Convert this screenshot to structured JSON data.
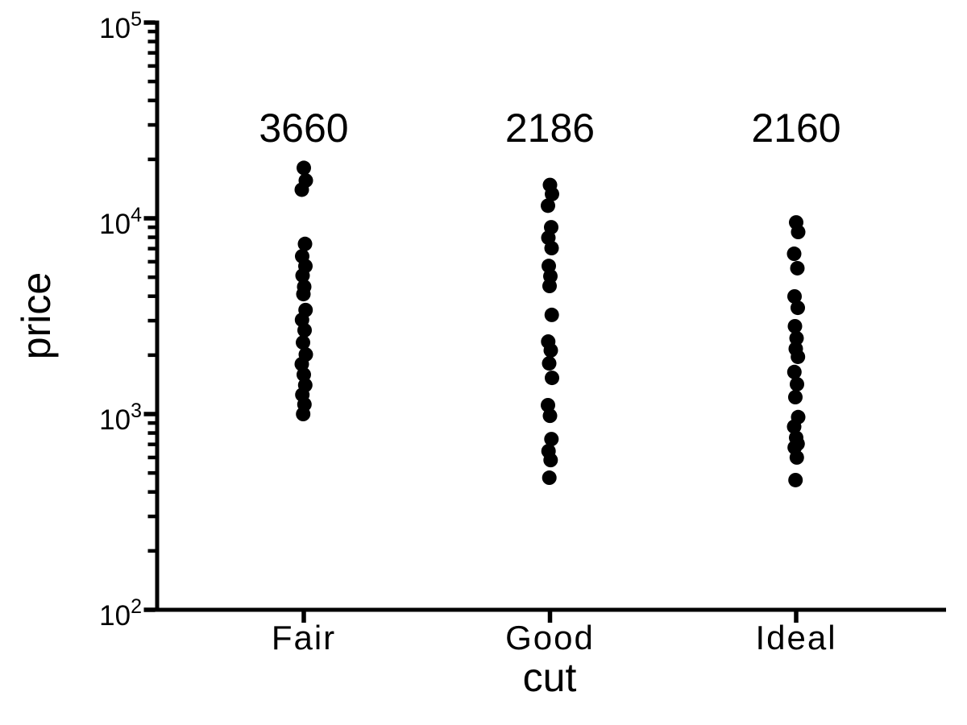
{
  "figure": {
    "background_color": "#ffffff"
  },
  "chart_data": {
    "type": "scatter",
    "subtype": "strip-plot",
    "title": "",
    "xlabel": "cut",
    "ylabel": "price",
    "x_scale": "categorical",
    "y_scale": "log10",
    "ylim": [
      100,
      100000
    ],
    "grid": "off",
    "legend": "none",
    "y_tick_base": "10",
    "y_tick_exponents": [
      "2",
      "3",
      "4",
      "5"
    ],
    "y_minor_ticks": "multiples 2-9 of each decade",
    "categories": [
      "Fair",
      "Good",
      "Ideal"
    ],
    "annotations": [
      {
        "category": "Fair",
        "label": "3660"
      },
      {
        "category": "Good",
        "label": "2186"
      },
      {
        "category": "Ideal",
        "label": "2160"
      }
    ],
    "series": [
      {
        "name": "Fair",
        "values": [
          18100,
          15600,
          14000,
          7400,
          6400,
          5700,
          5100,
          4470,
          4100,
          3400,
          3030,
          2680,
          2320,
          2015,
          1800,
          1590,
          1405,
          1255,
          1120,
          1000
        ]
      },
      {
        "name": "Good",
        "values": [
          14800,
          13300,
          11600,
          9000,
          7960,
          7040,
          5710,
          5060,
          4510,
          3210,
          2345,
          2115,
          1815,
          1530,
          1110,
          980,
          745,
          647,
          582,
          473
        ]
      },
      {
        "name": "Ideal",
        "values": [
          9530,
          8510,
          6590,
          5560,
          3990,
          3490,
          2810,
          2440,
          2155,
          1960,
          1640,
          1420,
          1220,
          965,
          862,
          757,
          705,
          675,
          600,
          460
        ]
      }
    ],
    "dot_color": "#000000",
    "axis_color": "#000000",
    "text_color": "#000000"
  }
}
